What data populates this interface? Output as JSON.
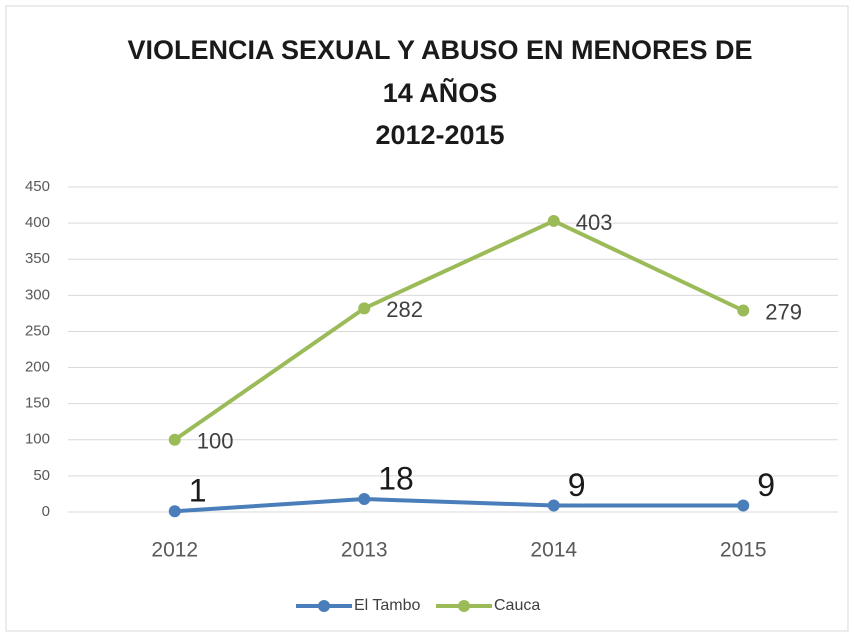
{
  "chart_data": {
    "type": "line",
    "title": [
      "VIOLENCIA SEXUAL Y ABUSO EN MENORES DE",
      "14 AÑOS",
      "2012-2015"
    ],
    "categories": [
      "2012",
      "2013",
      "2014",
      "2015"
    ],
    "series": [
      {
        "name": "El Tambo",
        "color": "#4a7ebb",
        "values": [
          1,
          18,
          9,
          9
        ]
      },
      {
        "name": "Cauca",
        "color": "#9bbb59",
        "values": [
          100,
          282,
          403,
          279
        ]
      }
    ],
    "ylim": [
      0,
      450
    ],
    "yticks": [
      0,
      50,
      100,
      150,
      200,
      250,
      300,
      350,
      400,
      450
    ],
    "grid": true,
    "legend": "bottom"
  }
}
